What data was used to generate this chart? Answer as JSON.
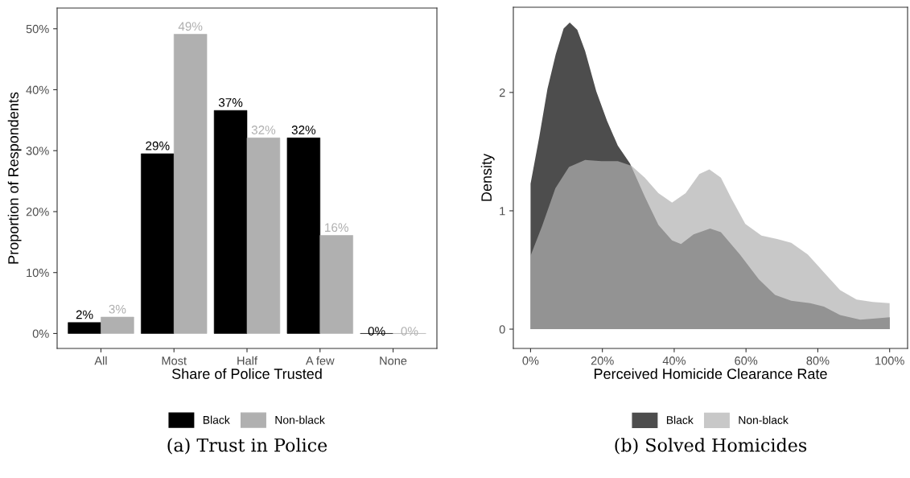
{
  "chart_data": [
    {
      "type": "bar",
      "title": "(a) Trust in Police",
      "xlabel": "Share of Police Trusted",
      "ylabel": "Proportion of Respondents",
      "categories": [
        "All",
        "Most",
        "Half",
        "A few",
        "None"
      ],
      "series": [
        {
          "name": "Black",
          "color": "#000000",
          "values": [
            1.8,
            29.5,
            36.6,
            32.1,
            0
          ],
          "value_labels": [
            "2%",
            "29%",
            "37%",
            "32%",
            "0%"
          ]
        },
        {
          "name": "Non-black",
          "color": "#b0b0b0",
          "values": [
            2.7,
            49.1,
            32.1,
            16.1,
            0
          ],
          "value_labels": [
            "3%",
            "49%",
            "32%",
            "16%",
            "0%"
          ]
        }
      ],
      "ylim": [
        -2.45,
        53.4
      ],
      "yticks": [
        {
          "value": 0,
          "label": "0%"
        },
        {
          "value": 10,
          "label": "10%"
        },
        {
          "value": 20,
          "label": "20%"
        },
        {
          "value": 30,
          "label": "30%"
        },
        {
          "value": 40,
          "label": "40%"
        },
        {
          "value": 50,
          "label": "50%"
        }
      ],
      "grid": false,
      "legend": "bottom"
    },
    {
      "type": "area",
      "title": "(b) Solved Homicides",
      "xlabel": "Perceived Homicide Clearance Rate",
      "ylabel": "Density",
      "series": [
        {
          "name": "Black",
          "color": "#4d4d4d",
          "x": [
            0,
            0.024,
            0.047,
            0.07,
            0.092,
            0.109,
            0.13,
            0.152,
            0.183,
            0.213,
            0.243,
            0.277,
            0.318,
            0.356,
            0.394,
            0.419,
            0.454,
            0.5,
            0.53,
            0.583,
            0.636,
            0.681,
            0.726,
            0.779,
            0.817,
            0.862,
            0.918,
            0.96,
            1.0
          ],
          "values": [
            1.23,
            1.62,
            2.03,
            2.32,
            2.54,
            2.59,
            2.53,
            2.35,
            2.01,
            1.76,
            1.55,
            1.4,
            1.12,
            0.88,
            0.75,
            0.72,
            0.8,
            0.85,
            0.82,
            0.63,
            0.42,
            0.29,
            0.24,
            0.22,
            0.19,
            0.12,
            0.08,
            0.09,
            0.1
          ]
        },
        {
          "name": "Non-black",
          "color": "#c8c8c8",
          "x": [
            0,
            0.032,
            0.069,
            0.107,
            0.152,
            0.197,
            0.243,
            0.281,
            0.318,
            0.356,
            0.394,
            0.432,
            0.47,
            0.498,
            0.53,
            0.56,
            0.598,
            0.643,
            0.689,
            0.726,
            0.772,
            0.817,
            0.862,
            0.908,
            0.953,
            1.0
          ],
          "values": [
            0.62,
            0.87,
            1.19,
            1.37,
            1.43,
            1.42,
            1.42,
            1.38,
            1.28,
            1.15,
            1.07,
            1.15,
            1.31,
            1.35,
            1.28,
            1.1,
            0.89,
            0.79,
            0.76,
            0.73,
            0.63,
            0.48,
            0.33,
            0.25,
            0.23,
            0.22
          ]
        }
      ],
      "xlim": [
        -0.048,
        1.05
      ],
      "xticks": [
        {
          "value": 0,
          "label": "0%"
        },
        {
          "value": 0.2,
          "label": "20%"
        },
        {
          "value": 0.4,
          "label": "40%"
        },
        {
          "value": 0.6,
          "label": "60%"
        },
        {
          "value": 0.8,
          "label": "80%"
        },
        {
          "value": 1.0,
          "label": "100%"
        }
      ],
      "ylim": [
        -0.163,
        2.72
      ],
      "yticks": [
        0,
        1,
        2
      ],
      "grid": false,
      "legend": "bottom"
    }
  ]
}
